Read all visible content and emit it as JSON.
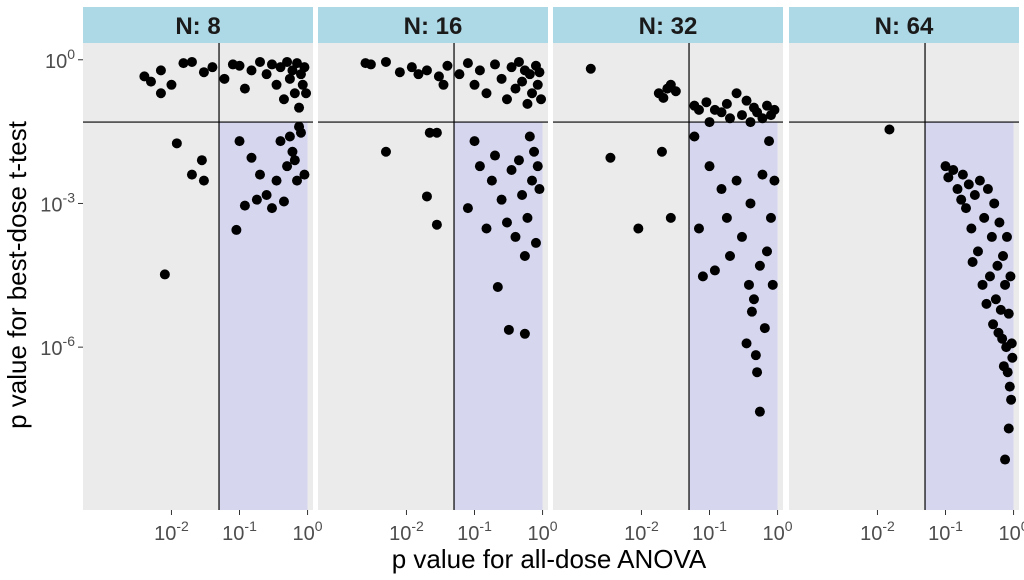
{
  "chart_data": {
    "type": "scatter",
    "xlabel": "p value for all-dose ANOVA",
    "ylabel": "p value for best-dose t-test",
    "x_scale": "log10",
    "y_scale": "log10",
    "xlim_log10": [
      -3.3,
      0.08
    ],
    "ylim_log10": [
      -9.4,
      0.35
    ],
    "x_ticks": [
      {
        "base": "10",
        "exp": "-2",
        "log10": -2
      },
      {
        "base": "10",
        "exp": "-1",
        "log10": -1
      },
      {
        "base": "10",
        "exp": "0",
        "log10": 0
      }
    ],
    "y_ticks": [
      {
        "base": "10",
        "exp": "0",
        "log10": 0
      },
      {
        "base": "10",
        "exp": "-3",
        "log10": -3
      },
      {
        "base": "10",
        "exp": "-6",
        "log10": -6
      }
    ],
    "threshold": {
      "x": 0.05,
      "y": 0.05
    },
    "panel_background": "#ebebeb",
    "strip_background": "#add8e6",
    "region_fill": "#d6d7ef",
    "point_color": "#000000",
    "line_color": "#000000",
    "panels": [
      {
        "label": "N: 8",
        "points": [
          [
            0.004,
            0.45
          ],
          [
            0.005,
            0.35
          ],
          [
            0.007,
            0.6
          ],
          [
            0.007,
            0.2
          ],
          [
            0.01,
            0.3
          ],
          [
            0.015,
            0.85
          ],
          [
            0.02,
            0.9
          ],
          [
            0.03,
            0.55
          ],
          [
            0.04,
            0.7
          ],
          [
            0.06,
            0.4
          ],
          [
            0.08,
            0.8
          ],
          [
            0.1,
            0.75
          ],
          [
            0.12,
            0.25
          ],
          [
            0.15,
            0.6
          ],
          [
            0.2,
            0.9
          ],
          [
            0.25,
            0.5
          ],
          [
            0.3,
            0.8
          ],
          [
            0.35,
            0.3
          ],
          [
            0.4,
            0.7
          ],
          [
            0.45,
            0.15
          ],
          [
            0.5,
            0.9
          ],
          [
            0.55,
            0.4
          ],
          [
            0.6,
            0.6
          ],
          [
            0.65,
            0.2
          ],
          [
            0.7,
            0.85
          ],
          [
            0.75,
            0.1
          ],
          [
            0.8,
            0.5
          ],
          [
            0.85,
            0.3
          ],
          [
            0.9,
            0.7
          ],
          [
            0.95,
            0.2
          ],
          [
            0.012,
            0.018
          ],
          [
            0.028,
            0.008
          ],
          [
            0.03,
            0.003
          ],
          [
            0.02,
            0.004
          ],
          [
            0.1,
            0.02
          ],
          [
            0.15,
            0.009
          ],
          [
            0.2,
            0.004
          ],
          [
            0.25,
            0.0015
          ],
          [
            0.3,
            0.0008
          ],
          [
            0.35,
            0.003
          ],
          [
            0.4,
            0.02
          ],
          [
            0.5,
            0.006
          ],
          [
            0.6,
            0.012
          ],
          [
            0.7,
            0.003
          ],
          [
            0.8,
            0.03
          ],
          [
            0.9,
            0.004
          ],
          [
            0.18,
            0.0012
          ],
          [
            0.12,
            0.0009
          ],
          [
            0.09,
            0.00028
          ],
          [
            0.008,
            3.3e-05
          ],
          [
            0.45,
            0.0011
          ],
          [
            0.55,
            0.025
          ],
          [
            0.65,
            0.008
          ],
          [
            0.75,
            0.04
          ]
        ]
      },
      {
        "label": "N: 16",
        "points": [
          [
            0.0025,
            0.85
          ],
          [
            0.003,
            0.8
          ],
          [
            0.005,
            0.9
          ],
          [
            0.008,
            0.55
          ],
          [
            0.012,
            0.7
          ],
          [
            0.015,
            0.5
          ],
          [
            0.02,
            0.6
          ],
          [
            0.03,
            0.45
          ],
          [
            0.035,
            0.3
          ],
          [
            0.04,
            0.75
          ],
          [
            0.06,
            0.5
          ],
          [
            0.08,
            0.85
          ],
          [
            0.1,
            0.3
          ],
          [
            0.12,
            0.6
          ],
          [
            0.15,
            0.2
          ],
          [
            0.2,
            0.8
          ],
          [
            0.25,
            0.4
          ],
          [
            0.3,
            0.15
          ],
          [
            0.35,
            0.7
          ],
          [
            0.4,
            0.25
          ],
          [
            0.45,
            0.9
          ],
          [
            0.5,
            0.35
          ],
          [
            0.55,
            0.6
          ],
          [
            0.6,
            0.12
          ],
          [
            0.65,
            0.5
          ],
          [
            0.7,
            0.2
          ],
          [
            0.8,
            0.75
          ],
          [
            0.85,
            0.3
          ],
          [
            0.9,
            0.55
          ],
          [
            0.95,
            0.15
          ],
          [
            0.005,
            0.012
          ],
          [
            0.022,
            0.03
          ],
          [
            0.028,
            0.03
          ],
          [
            0.02,
            0.0014
          ],
          [
            0.028,
            0.00036
          ],
          [
            0.08,
            0.0008
          ],
          [
            0.1,
            0.02
          ],
          [
            0.12,
            0.006
          ],
          [
            0.15,
            0.0003
          ],
          [
            0.18,
            0.003
          ],
          [
            0.2,
            0.01
          ],
          [
            0.25,
            0.0012
          ],
          [
            0.3,
            0.0004
          ],
          [
            0.35,
            0.005
          ],
          [
            0.4,
            0.0002
          ],
          [
            0.45,
            0.008
          ],
          [
            0.5,
            0.0015
          ],
          [
            0.55,
            8e-05
          ],
          [
            0.6,
            0.0005
          ],
          [
            0.7,
            0.003
          ],
          [
            0.8,
            0.00015
          ],
          [
            0.9,
            0.002
          ],
          [
            0.22,
            1.8e-05
          ],
          [
            0.32,
            2.3e-06
          ],
          [
            0.55,
            1.9e-06
          ],
          [
            0.65,
            0.025
          ],
          [
            0.75,
            0.012
          ],
          [
            0.85,
            0.006
          ]
        ]
      },
      {
        "label": "N: 32",
        "points": [
          [
            0.0018,
            0.65
          ],
          [
            0.018,
            0.2
          ],
          [
            0.021,
            0.16
          ],
          [
            0.024,
            0.25
          ],
          [
            0.027,
            0.3
          ],
          [
            0.032,
            0.22
          ],
          [
            0.06,
            0.11
          ],
          [
            0.07,
            0.09
          ],
          [
            0.09,
            0.13
          ],
          [
            0.1,
            0.05
          ],
          [
            0.12,
            0.09
          ],
          [
            0.15,
            0.08
          ],
          [
            0.18,
            0.12
          ],
          [
            0.2,
            0.06
          ],
          [
            0.25,
            0.2
          ],
          [
            0.3,
            0.07
          ],
          [
            0.35,
            0.14
          ],
          [
            0.4,
            0.05
          ],
          [
            0.45,
            0.1
          ],
          [
            0.5,
            0.08
          ],
          [
            0.6,
            0.06
          ],
          [
            0.7,
            0.11
          ],
          [
            0.8,
            0.07
          ],
          [
            0.9,
            0.09
          ],
          [
            0.0035,
            0.009
          ],
          [
            0.009,
            0.0003
          ],
          [
            0.02,
            0.012
          ],
          [
            0.027,
            0.0005
          ],
          [
            0.06,
            0.025
          ],
          [
            0.07,
            0.0003
          ],
          [
            0.08,
            3e-05
          ],
          [
            0.1,
            0.006
          ],
          [
            0.12,
            4e-05
          ],
          [
            0.15,
            0.002
          ],
          [
            0.18,
            0.0005
          ],
          [
            0.2,
            8e-05
          ],
          [
            0.25,
            0.003
          ],
          [
            0.3,
            0.0002
          ],
          [
            0.35,
            1.2e-06
          ],
          [
            0.38,
            2e-05
          ],
          [
            0.4,
            0.001
          ],
          [
            0.45,
            1e-05
          ],
          [
            0.5,
            3e-07
          ],
          [
            0.55,
            5e-05
          ],
          [
            0.6,
            0.004
          ],
          [
            0.65,
            2.5e-06
          ],
          [
            0.7,
            0.0001
          ],
          [
            0.75,
            0.02
          ],
          [
            0.8,
            0.0005
          ],
          [
            0.85,
            2e-05
          ],
          [
            0.9,
            0.003
          ],
          [
            0.42,
            5.5e-06
          ],
          [
            0.48,
            6.8e-07
          ],
          [
            0.55,
            4.5e-08
          ]
        ]
      },
      {
        "label": "N: 64",
        "points": [
          [
            0.015,
            0.035
          ],
          [
            0.1,
            0.006
          ],
          [
            0.11,
            0.0035
          ],
          [
            0.13,
            0.005
          ],
          [
            0.15,
            0.002
          ],
          [
            0.17,
            0.0012
          ],
          [
            0.18,
            0.004
          ],
          [
            0.2,
            0.0008
          ],
          [
            0.22,
            0.0025
          ],
          [
            0.24,
            0.0003
          ],
          [
            0.25,
            6e-05
          ],
          [
            0.27,
            0.0015
          ],
          [
            0.3,
            0.0001
          ],
          [
            0.32,
            0.003
          ],
          [
            0.35,
            2e-05
          ],
          [
            0.37,
            0.0005
          ],
          [
            0.4,
            8e-06
          ],
          [
            0.42,
            0.002
          ],
          [
            0.45,
            3e-05
          ],
          [
            0.48,
            0.0002
          ],
          [
            0.5,
            3e-06
          ],
          [
            0.52,
            0.001
          ],
          [
            0.55,
            1e-05
          ],
          [
            0.58,
            5e-05
          ],
          [
            0.6,
            2e-06
          ],
          [
            0.62,
            0.0004
          ],
          [
            0.65,
            6e-06
          ],
          [
            0.68,
            1.5e-06
          ],
          [
            0.7,
            8e-05
          ],
          [
            0.72,
            4e-07
          ],
          [
            0.75,
            2e-05
          ],
          [
            0.78,
            1e-06
          ],
          [
            0.8,
            0.0002
          ],
          [
            0.82,
            3e-07
          ],
          [
            0.85,
            5e-06
          ],
          [
            0.88,
            1.5e-07
          ],
          [
            0.9,
            3e-05
          ],
          [
            0.92,
            8e-08
          ],
          [
            0.94,
            1.2e-06
          ],
          [
            0.96,
            6e-07
          ],
          [
            0.85,
            2e-08
          ],
          [
            0.75,
            4.5e-09
          ]
        ]
      }
    ]
  }
}
